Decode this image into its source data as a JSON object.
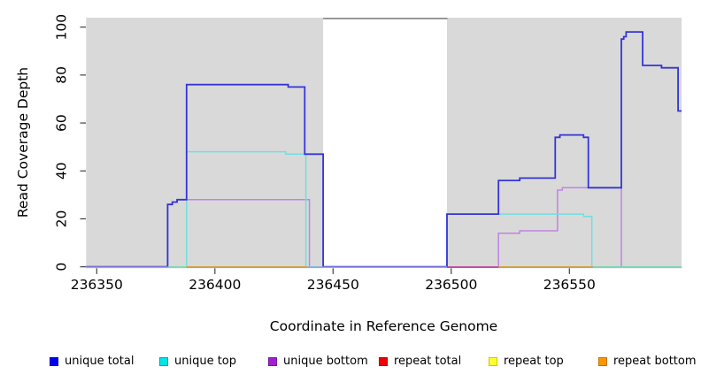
{
  "chart_data": {
    "type": "line",
    "subtype": "step-coverage",
    "title": "",
    "xlabel": "Coordinate in Reference Genome",
    "ylabel": "Read Coverage Depth",
    "xlim": [
      236345.5,
      236597.5
    ],
    "ylim": [
      0,
      104
    ],
    "grid": "off",
    "legend_position": "bottom",
    "x_ticks": [
      236350,
      236400,
      236450,
      236500,
      236550
    ],
    "y_ticks": [
      0,
      20,
      40,
      60,
      80,
      100
    ],
    "plot_bg_color": "#d9d9d9",
    "background_blocks": [
      {
        "x1": 236345.5,
        "x2": 236445.8
      },
      {
        "x1": 236498.2,
        "x2": 236597.5
      }
    ],
    "gap_top_line": {
      "x1": 236445.8,
      "x2": 236498.4,
      "y": 103.6,
      "color": "#8a8a8a"
    },
    "series": [
      {
        "name": "unique total",
        "color": "#3434d8",
        "legend_color": "#0000ee",
        "points": [
          [
            236345.5,
            0
          ],
          [
            236380,
            26
          ],
          [
            236382,
            27
          ],
          [
            236384,
            28
          ],
          [
            236388,
            76
          ],
          [
            236431,
            75
          ],
          [
            236438,
            47
          ],
          [
            236445.8,
            0
          ],
          [
            236498.2,
            22
          ],
          [
            236520,
            36
          ],
          [
            236529,
            37
          ],
          [
            236544,
            54
          ],
          [
            236546,
            55
          ],
          [
            236556,
            54
          ],
          [
            236558,
            33
          ],
          [
            236572,
            95
          ],
          [
            236573,
            96
          ],
          [
            236574,
            98
          ],
          [
            236581,
            84
          ],
          [
            236589,
            83
          ],
          [
            236596,
            65
          ],
          [
            236597.5,
            65
          ]
        ]
      },
      {
        "name": "unique top",
        "color": "#6fe0e0",
        "legend_color": "#00e5e5",
        "points": [
          [
            236345.5,
            0
          ],
          [
            236388,
            48
          ],
          [
            236430,
            47
          ],
          [
            236438.5,
            0
          ],
          [
            236498.2,
            22
          ],
          [
            236556,
            21
          ],
          [
            236559.5,
            0
          ],
          [
            236597.5,
            0
          ]
        ]
      },
      {
        "name": "unique bottom",
        "color": "#c183e2",
        "legend_color": "#a020d0",
        "points": [
          [
            236345.5,
            0
          ],
          [
            236380,
            26
          ],
          [
            236382,
            27
          ],
          [
            236384,
            28
          ],
          [
            236440,
            0
          ],
          [
            236520,
            14
          ],
          [
            236529,
            15
          ],
          [
            236545,
            32
          ],
          [
            236547,
            33
          ],
          [
            236572,
            0
          ],
          [
            236597.5,
            0
          ]
        ]
      },
      {
        "name": "repeat total",
        "color": "#c34b7e",
        "legend_color": "#ee0000",
        "points": [
          [
            236498.2,
            0
          ],
          [
            236520,
            0
          ]
        ]
      },
      {
        "name": "repeat top",
        "color": "#8fcf9b",
        "legend_color": "#ffff00",
        "points": [
          [
            236380,
            0
          ],
          [
            236388,
            0
          ],
          [
            236560,
            0
          ],
          [
            236597.5,
            0
          ]
        ]
      },
      {
        "name": "repeat bottom",
        "color": "#ff8c1a",
        "legend_color": "#ff9500",
        "points": [
          [
            236388,
            0
          ],
          [
            236439,
            0
          ],
          [
            236520,
            0
          ],
          [
            236560,
            0
          ]
        ]
      }
    ],
    "baseline_segments": [
      {
        "x1": 236345.5,
        "x2": 236380,
        "color": "#a89ae0"
      },
      {
        "x1": 236380,
        "x2": 236388,
        "color": "#9ccf9c"
      },
      {
        "x1": 236388,
        "x2": 236439,
        "color": "#ff8c1a"
      },
      {
        "x1": 236439,
        "x2": 236445.8,
        "color": "#a89ae0"
      },
      {
        "x1": 236445.8,
        "x2": 236498.2,
        "color": "#9f97e6"
      },
      {
        "x1": 236498.2,
        "x2": 236520,
        "color": "#c34b7e"
      },
      {
        "x1": 236520,
        "x2": 236560,
        "color": "#ff8c1a"
      },
      {
        "x1": 236560,
        "x2": 236597.5,
        "color": "#8fcf9b"
      }
    ],
    "legend": [
      {
        "label": "unique total",
        "color": "#0000ee",
        "border": "#0000b0"
      },
      {
        "label": "unique top",
        "color": "#00e5e5",
        "border": "#00aaaa"
      },
      {
        "label": "unique bottom",
        "color": "#a020d0",
        "border": "#7a18a0"
      },
      {
        "label": "repeat total",
        "color": "#ee0000",
        "border": "#b00000"
      },
      {
        "label": "repeat top",
        "color": "#ffff33",
        "border": "#c8c800"
      },
      {
        "label": "repeat bottom",
        "color": "#ff9500",
        "border": "#c87400"
      }
    ]
  }
}
